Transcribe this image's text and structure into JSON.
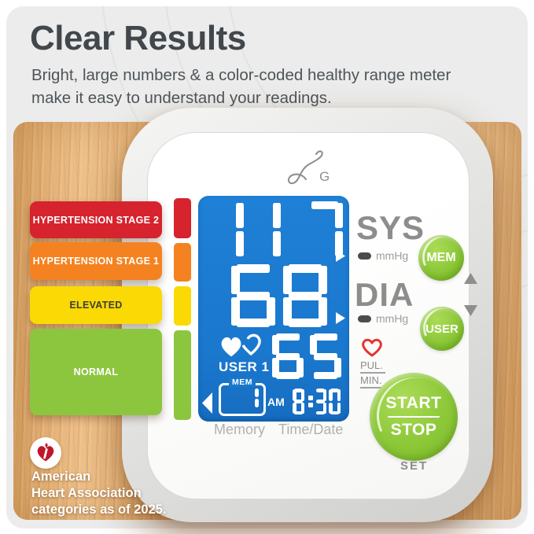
{
  "header": {
    "title": "Clear Results",
    "subtitle": "Bright, large numbers & a color-coded healthy range meter make it easy to understand your readings."
  },
  "meter": {
    "bars": [
      {
        "label": "HYPERTENSION STAGE 2",
        "color": "#d6232e",
        "text_color": "#ffffff"
      },
      {
        "label": "HYPERTENSION STAGE 1",
        "color": "#f58220",
        "text_color": "#ffffff"
      },
      {
        "label": "ELEVATED",
        "color": "#fad905",
        "text_color": "#3e3e34"
      },
      {
        "label": "NORMAL",
        "color": "#8cc63f",
        "text_color": "#ffffff"
      }
    ]
  },
  "device": {
    "brand_icon": "greater-goods-script-g-logo",
    "display": {
      "sys_value": "117",
      "dia_value": "68",
      "pulse_value": "65",
      "user_label": "USER 1",
      "mem_tag": "MEM",
      "mem_value": "1",
      "ampm": "AM",
      "time": "8:30",
      "background_color": "#1a78cd"
    },
    "labels": {
      "sys": "SYS",
      "dia": "DIA",
      "mmhg_sys": "mmHg",
      "mmhg_dia": "mmHg",
      "pul": "PUL.",
      "min": "MIN.",
      "memory": "Memory",
      "time_date": "Time/Date",
      "set": "SET"
    },
    "buttons": {
      "mem": "MEM",
      "user": "USER",
      "start": "START",
      "stop": "STOP",
      "color": "#8cc838"
    }
  },
  "footnote": {
    "line1": "American",
    "line2": "Heart Association",
    "line3": "categories as of 2025."
  },
  "colors": {
    "top_panel": "#ebeceb",
    "title_text": "#42474c",
    "wood_base": "#e3ad6f",
    "lcd_blue": "#1a78cd",
    "gray_label": "#8d8d8b",
    "heart_red": "#e5332e"
  }
}
